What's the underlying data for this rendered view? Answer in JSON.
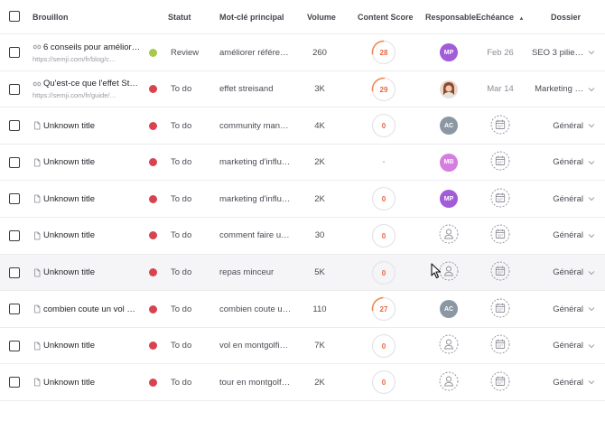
{
  "header": {
    "brouillon": "Brouillon",
    "statut": "Statut",
    "keyword": "Mot-clé principal",
    "volume": "Volume",
    "content_score": "Content Score",
    "responsable": "Responsable",
    "echeance": "Echéance",
    "sort_indicator": "▲",
    "dossier": "Dossier"
  },
  "colors": {
    "review": "#a7c94a",
    "todo": "#d9434f",
    "score_ring": "#e6e6ea",
    "score_arc": "#f08a55",
    "score_text": "#e8663f"
  },
  "rows": [
    {
      "icon": "link-icon",
      "title": "6 conseils pour amélior…",
      "url": "https://semji.com/fr/blog/c…",
      "status": "Review",
      "status_color": "#a7c94a",
      "keyword": "améliorer référen…",
      "volume": "260",
      "score": "28",
      "score_progress": 0.28,
      "resp": {
        "type": "initials",
        "label": "MP",
        "color": "#a25bd9"
      },
      "due": "Feb 26",
      "folder": "SEO 3 pilie…"
    },
    {
      "icon": "link-icon",
      "title": "Qu'est-ce que l'effet St…",
      "url": "https://semji.com/fr/guide/…",
      "status": "To do",
      "status_color": "#d9434f",
      "keyword": "effet streisand",
      "volume": "3K",
      "score": "29",
      "score_progress": 0.29,
      "resp": {
        "type": "photo",
        "label": ""
      },
      "due": "Mar 14",
      "folder": "Marketing …"
    },
    {
      "icon": "document-icon",
      "title": "Unknown title",
      "url": "",
      "status": "To do",
      "status_color": "#d9434f",
      "keyword": "community mana…",
      "volume": "4K",
      "score": "0",
      "score_progress": 0,
      "resp": {
        "type": "initials",
        "label": "AC",
        "color": "#8b98a3"
      },
      "due": "",
      "folder": "Général"
    },
    {
      "icon": "document-icon",
      "title": "Unknown title",
      "url": "",
      "status": "To do",
      "status_color": "#d9434f",
      "keyword": "marketing d'influ…",
      "volume": "2K",
      "score": "-",
      "score_progress": null,
      "resp": {
        "type": "initials",
        "label": "MB",
        "color": "#d57ee0"
      },
      "due": "",
      "folder": "Général"
    },
    {
      "icon": "document-icon",
      "title": "Unknown title",
      "url": "",
      "status": "To do",
      "status_color": "#d9434f",
      "keyword": "marketing d'influ…",
      "volume": "2K",
      "score": "0",
      "score_progress": 0,
      "resp": {
        "type": "initials",
        "label": "MP",
        "color": "#a25bd9"
      },
      "due": "",
      "folder": "Général"
    },
    {
      "icon": "document-icon",
      "title": "Unknown title",
      "url": "",
      "status": "To do",
      "status_color": "#d9434f",
      "keyword": "comment faire u…",
      "volume": "30",
      "score": "0",
      "score_progress": 0,
      "resp": {
        "type": "empty",
        "label": ""
      },
      "due": "",
      "folder": "Général"
    },
    {
      "icon": "document-icon",
      "title": "Unknown title",
      "url": "",
      "status": "To do",
      "status_color": "#d9434f",
      "keyword": "repas minceur",
      "volume": "5K",
      "score": "0",
      "score_progress": 0,
      "resp": {
        "type": "empty",
        "label": ""
      },
      "due": "",
      "folder": "Général"
    },
    {
      "icon": "document-icon",
      "title": "combien coute un vol …",
      "url": "",
      "status": "To do",
      "status_color": "#d9434f",
      "keyword": "combien coute u…",
      "volume": "110",
      "score": "27",
      "score_progress": 0.27,
      "resp": {
        "type": "initials",
        "label": "AC",
        "color": "#8b98a3"
      },
      "due": "",
      "folder": "Général"
    },
    {
      "icon": "document-icon",
      "title": "Unknown title",
      "url": "",
      "status": "To do",
      "status_color": "#d9434f",
      "keyword": "vol en montgolfiè…",
      "volume": "7K",
      "score": "0",
      "score_progress": 0,
      "resp": {
        "type": "empty",
        "label": ""
      },
      "due": "",
      "folder": "Général"
    },
    {
      "icon": "document-icon",
      "title": "Unknown title",
      "url": "",
      "status": "To do",
      "status_color": "#d9434f",
      "keyword": "tour en montgolfi…",
      "volume": "2K",
      "score": "0",
      "score_progress": 0,
      "resp": {
        "type": "empty",
        "label": ""
      },
      "due": "",
      "folder": "Général"
    }
  ]
}
